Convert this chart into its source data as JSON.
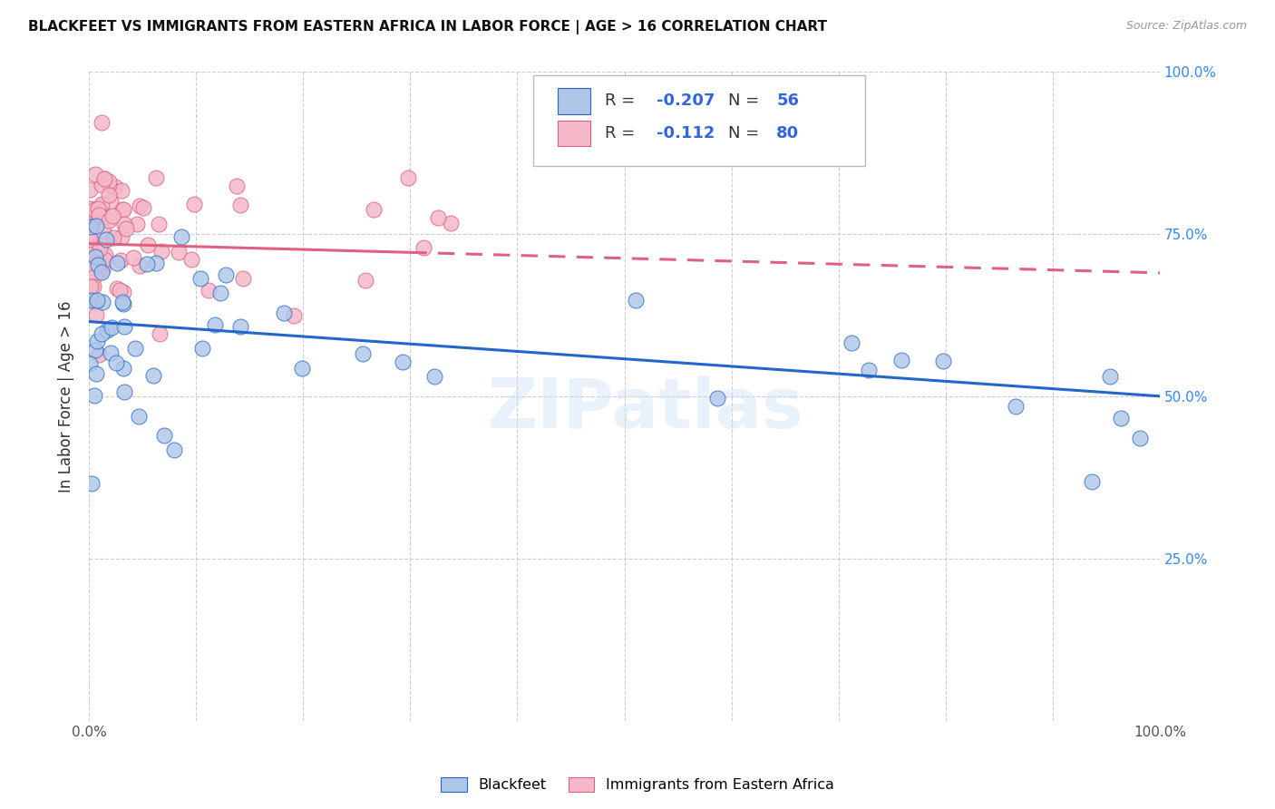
{
  "title": "BLACKFEET VS IMMIGRANTS FROM EASTERN AFRICA IN LABOR FORCE | AGE > 16 CORRELATION CHART",
  "source": "Source: ZipAtlas.com",
  "ylabel": "In Labor Force | Age > 16",
  "legend_label1": "Blackfeet",
  "legend_label2": "Immigrants from Eastern Africa",
  "R1": -0.207,
  "N1": 56,
  "R2": -0.112,
  "N2": 80,
  "color1": "#aec6e8",
  "color2": "#f4b8c8",
  "line1_color": "#2266cc",
  "line2_color": "#e06080",
  "watermark": "ZIPatlas",
  "bf_seed": 42,
  "ea_seed": 99,
  "bf_line_intercept": 0.615,
  "bf_line_slope": -0.115,
  "ea_line_intercept": 0.735,
  "ea_line_slope": -0.045
}
